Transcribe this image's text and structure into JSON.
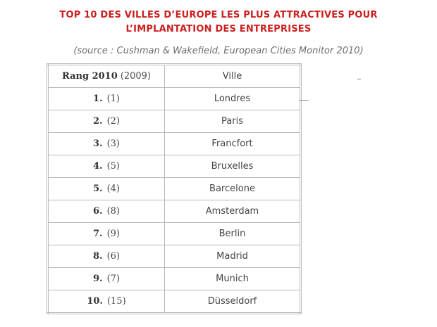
{
  "title": {
    "line1": "TOP 10 DES VILLES D’EUROPE LES PLUS ATTRACTIVES POUR",
    "line2": "L’IMPLANTATION DES ENTREPRISES"
  },
  "source": "(source : Cushman & Wakefield, European Cities Monitor 2010)",
  "table": {
    "header": {
      "rank": "Rang 2010",
      "prev": "(2009)",
      "city": "Ville"
    },
    "rows": [
      {
        "rank": "1.",
        "prev": "(1)",
        "city": "Londres"
      },
      {
        "rank": "2.",
        "prev": "(2)",
        "city": "Paris"
      },
      {
        "rank": "3.",
        "prev": "(3)",
        "city": "Francfort"
      },
      {
        "rank": "4.",
        "prev": "(5)",
        "city": "Bruxelles"
      },
      {
        "rank": "5.",
        "prev": "(4)",
        "city": "Barcelone"
      },
      {
        "rank": "6.",
        "prev": "(8)",
        "city": "Amsterdam"
      },
      {
        "rank": "7.",
        "prev": "(9)",
        "city": "Berlin"
      },
      {
        "rank": "8.",
        "prev": "(6)",
        "city": "Madrid"
      },
      {
        "rank": "9.",
        "prev": "(7)",
        "city": "Munich"
      },
      {
        "rank": "10.",
        "prev": "(15)",
        "city": "Düsseldorf"
      }
    ]
  }
}
